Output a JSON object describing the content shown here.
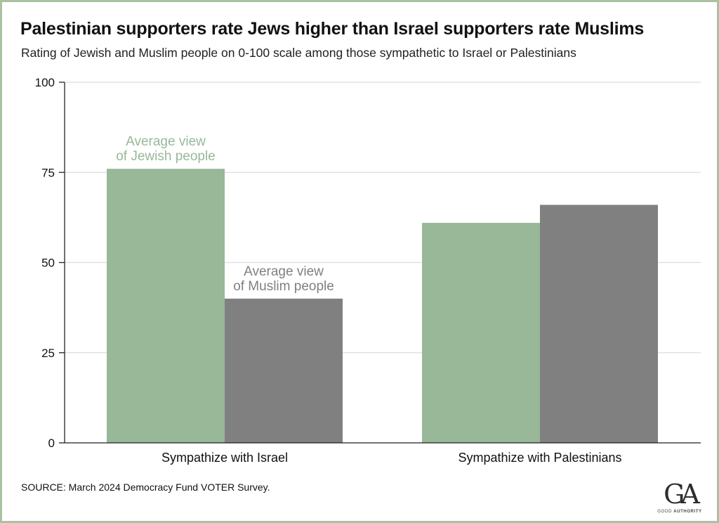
{
  "title": "Palestinian supporters rate Jews higher than Israel supporters rate Muslims",
  "subtitle": "Rating of Jewish and Muslim people on 0-100 scale among those sympathetic to Israel or Palestinians",
  "source": "SOURCE: March 2024 Democracy Fund VOTER Survey.",
  "logo": {
    "mark": "GA",
    "word_light": "GOOD ",
    "word_bold": "AUTHORITY"
  },
  "colors": {
    "jewish": "#98b898",
    "muslim": "#808080",
    "grid": "#dddddd",
    "frame": "#a9c3a0",
    "axis": "#222222"
  },
  "chart_data": {
    "type": "bar",
    "categories": [
      "Sympathize with Israel",
      "Sympathize with Palestinians"
    ],
    "series": [
      {
        "name": "Average view of Jewish people",
        "values": [
          76,
          61
        ],
        "color": "#98b898"
      },
      {
        "name": "Average view of Muslim people",
        "values": [
          40,
          66
        ],
        "color": "#808080"
      }
    ],
    "annotations": [
      {
        "lines": [
          "Average view",
          "of Jewish people"
        ],
        "series": 0,
        "category": 0,
        "color": "#98b898"
      },
      {
        "lines": [
          "Average view",
          "of Muslim people"
        ],
        "series": 1,
        "category": 0,
        "color": "#808080"
      }
    ],
    "ylim": [
      0,
      100
    ],
    "yticks": [
      0,
      25,
      50,
      75,
      100
    ],
    "xlabel": "",
    "ylabel": "",
    "grid": true,
    "legend": "none"
  }
}
